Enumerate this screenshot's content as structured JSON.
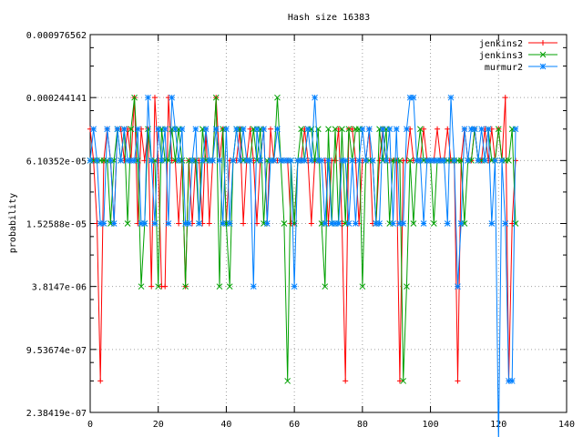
{
  "chart_data": {
    "type": "line",
    "title": "Hash size 16383",
    "xlabel": "",
    "ylabel": "probability",
    "xlim": [
      0,
      140
    ],
    "ylim_log2": [
      -22,
      -10
    ],
    "y_scale": "log",
    "grid": true,
    "legend_position": "top-right",
    "x_ticks": [
      0,
      20,
      40,
      60,
      80,
      100,
      120,
      140
    ],
    "x_tick_labels": [
      "0",
      "20",
      "40",
      "60",
      "80",
      "100",
      "120",
      "140"
    ],
    "y_ticks_log2": [
      -22,
      -20,
      -18,
      -16,
      -14,
      -12,
      -10
    ],
    "y_tick_labels": [
      "2.38419e-07",
      "9.53674e-07",
      "3.8147e-06",
      "1.52588e-05",
      "6.10352e-05",
      "0.000244141",
      "0.000976562"
    ],
    "series": [
      {
        "name": "jenkins2",
        "color": "#ff0000",
        "marker": "plus",
        "x": [
          0,
          1,
          2,
          3,
          4,
          5,
          6,
          7,
          8,
          9,
          10,
          11,
          12,
          13,
          14,
          15,
          16,
          17,
          18,
          19,
          20,
          21,
          22,
          23,
          24,
          25,
          26,
          27,
          28,
          29,
          30,
          31,
          32,
          33,
          34,
          35,
          36,
          37,
          38,
          39,
          40,
          41,
          42,
          43,
          44,
          45,
          46,
          47,
          48,
          49,
          50,
          51,
          52,
          53,
          54,
          55,
          56,
          57,
          58,
          59,
          60,
          61,
          62,
          63,
          64,
          65,
          66,
          67,
          68,
          69,
          70,
          71,
          72,
          73,
          74,
          75,
          76,
          77,
          78,
          79,
          80,
          81,
          82,
          83,
          84,
          85,
          86,
          87,
          88,
          89,
          90,
          91,
          92,
          93,
          94,
          95,
          96,
          97,
          98,
          99,
          100,
          101,
          102,
          103,
          104,
          105,
          106,
          107,
          108,
          109,
          110,
          111,
          112,
          113,
          114,
          115,
          116,
          117,
          118,
          119,
          120,
          121,
          122,
          123,
          124,
          125
        ],
        "y_log2": [
          -13,
          -14,
          -16,
          -21,
          -14,
          -13,
          -14,
          -16,
          -13,
          -13,
          -14,
          -13,
          -14,
          -12,
          -16,
          -13,
          -14,
          -13,
          -18,
          -12,
          -14,
          -18,
          -18,
          -12,
          -14,
          -14,
          -16,
          -14,
          -18,
          -14,
          -16,
          -14,
          -14,
          -16,
          -13,
          -16,
          -14,
          -12,
          -14,
          -13,
          -16,
          -14,
          -14,
          -14,
          -13,
          -16,
          -14,
          -13,
          -14,
          -16,
          -14,
          -13,
          -16,
          -13,
          -14,
          -14,
          -14,
          -14,
          -14,
          -16,
          -16,
          -14,
          -14,
          -13,
          -14,
          -16,
          -14,
          -14,
          -14,
          -14,
          -16,
          -14,
          -14,
          -13,
          -16,
          -21,
          -13,
          -13,
          -14,
          -16,
          -14,
          -14,
          -13,
          -16,
          -16,
          -14,
          -13,
          -14,
          -14,
          -14,
          -14,
          -21,
          -14,
          -14,
          -13,
          -14,
          -14,
          -14,
          -13,
          -14,
          -14,
          -14,
          -13,
          -14,
          -14,
          -13,
          -14,
          -14,
          -21,
          -14,
          -13,
          -14,
          -14,
          -13,
          -14,
          -14,
          -13,
          -14,
          -13,
          -14,
          -13,
          -14,
          -12,
          -21,
          -16,
          -14
        ]
      },
      {
        "name": "jenkins3",
        "color": "#00a000",
        "marker": "cross",
        "x": [
          0,
          1,
          2,
          3,
          4,
          5,
          6,
          7,
          8,
          9,
          10,
          11,
          12,
          13,
          14,
          15,
          16,
          17,
          18,
          19,
          20,
          21,
          22,
          23,
          24,
          25,
          26,
          27,
          28,
          29,
          30,
          31,
          32,
          33,
          34,
          35,
          36,
          37,
          38,
          39,
          40,
          41,
          42,
          43,
          44,
          45,
          46,
          47,
          48,
          49,
          50,
          51,
          52,
          53,
          54,
          55,
          56,
          57,
          58,
          59,
          60,
          61,
          62,
          63,
          64,
          65,
          66,
          67,
          68,
          69,
          70,
          71,
          72,
          73,
          74,
          75,
          76,
          77,
          78,
          79,
          80,
          81,
          82,
          83,
          84,
          85,
          86,
          87,
          88,
          89,
          90,
          91,
          92,
          93,
          94,
          95,
          96,
          97,
          98,
          99,
          100,
          101,
          102,
          103,
          104,
          105,
          106,
          107,
          108,
          109,
          110,
          111,
          112,
          113,
          114,
          115,
          116,
          117,
          118,
          119,
          120,
          121,
          122,
          123,
          124,
          125
        ],
        "y_log2": [
          -14,
          -14,
          -14,
          -14,
          -14,
          -14,
          -16,
          -14,
          -13,
          -14,
          -13,
          -16,
          -13,
          -12,
          -14,
          -18,
          -16,
          -13,
          -14,
          -14,
          -18,
          -13,
          -14,
          -14,
          -13,
          -14,
          -13,
          -14,
          -18,
          -14,
          -14,
          -14,
          -16,
          -13,
          -14,
          -14,
          -14,
          -12,
          -18,
          -13,
          -16,
          -18,
          -14,
          -13,
          -13,
          -14,
          -14,
          -14,
          -13,
          -14,
          -13,
          -16,
          -14,
          -14,
          -14,
          -12,
          -14,
          -16,
          -21,
          -14,
          -16,
          -14,
          -13,
          -14,
          -13,
          -13,
          -14,
          -13,
          -16,
          -18,
          -13,
          -16,
          -13,
          -16,
          -13,
          -16,
          -13,
          -14,
          -13,
          -13,
          -18,
          -14,
          -14,
          -14,
          -16,
          -13,
          -14,
          -13,
          -16,
          -14,
          -14,
          -14,
          -21,
          -18,
          -14,
          -16,
          -14,
          -13,
          -14,
          -14,
          -14,
          -16,
          -14,
          -14,
          -14,
          -14,
          -14,
          -14,
          -14,
          -14,
          -16,
          -14,
          -14,
          -13,
          -14,
          -14,
          -14,
          -13,
          -14,
          -14,
          -13,
          -14,
          -14,
          -14,
          -13,
          -16
        ]
      },
      {
        "name": "murmur2",
        "color": "#0080ff",
        "marker": "star",
        "x": [
          0,
          1,
          2,
          3,
          4,
          5,
          6,
          7,
          8,
          9,
          10,
          11,
          12,
          13,
          14,
          15,
          16,
          17,
          18,
          19,
          20,
          21,
          22,
          23,
          24,
          25,
          26,
          27,
          28,
          29,
          30,
          31,
          32,
          33,
          34,
          35,
          36,
          37,
          38,
          39,
          40,
          41,
          42,
          43,
          44,
          45,
          46,
          47,
          48,
          49,
          50,
          51,
          52,
          53,
          54,
          55,
          56,
          57,
          58,
          59,
          60,
          61,
          62,
          63,
          64,
          65,
          66,
          67,
          68,
          69,
          70,
          71,
          72,
          73,
          74,
          75,
          76,
          77,
          78,
          79,
          80,
          81,
          82,
          83,
          84,
          85,
          86,
          87,
          88,
          89,
          90,
          91,
          92,
          93,
          94,
          95,
          96,
          97,
          98,
          99,
          100,
          101,
          102,
          103,
          104,
          105,
          106,
          107,
          108,
          109,
          110,
          111,
          112,
          113,
          114,
          115,
          116,
          117,
          118,
          119,
          120,
          121,
          122,
          123,
          124,
          125
        ],
        "y_log2": [
          -14,
          -13,
          -14,
          -16,
          -16,
          -13,
          -14,
          -16,
          -13,
          -14,
          -13,
          -14,
          -14,
          -14,
          -13,
          -16,
          -16,
          -12,
          -14,
          -16,
          -13,
          -14,
          -13,
          -16,
          -12,
          -13,
          -14,
          -13,
          -16,
          -16,
          -14,
          -13,
          -16,
          -14,
          -13,
          -14,
          -14,
          -13,
          -14,
          -16,
          -13,
          -16,
          -14,
          -13,
          -14,
          -13,
          -14,
          -14,
          -18,
          -13,
          -14,
          -13,
          -16,
          -14,
          -14,
          -13,
          -14,
          -14,
          -14,
          -14,
          -18,
          -14,
          -14,
          -14,
          -13,
          -14,
          -12,
          -14,
          -14,
          -16,
          -14,
          -16,
          -16,
          -16,
          -14,
          -14,
          -16,
          -14,
          -16,
          -14,
          -13,
          -14,
          -13,
          -14,
          -16,
          -16,
          -13,
          -14,
          -13,
          -16,
          -13,
          -16,
          -16,
          -13,
          -12,
          -12,
          -14,
          -14,
          -16,
          -14,
          -14,
          -14,
          -14,
          -14,
          -14,
          -16,
          -12,
          -14,
          -18,
          -16,
          -13,
          -14,
          -13,
          -13,
          -14,
          -13,
          -14,
          -13,
          -16,
          -14,
          -23,
          -14,
          -16,
          -21,
          -21,
          -13
        ]
      }
    ]
  }
}
